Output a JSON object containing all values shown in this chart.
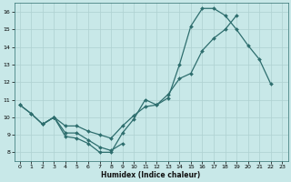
{
  "xlabel": "Humidex (Indice chaleur)",
  "bg_color": "#c8e8e8",
  "grid_color": "#aed0d0",
  "line_color": "#2e6e6e",
  "xlim": [
    -0.5,
    23.5
  ],
  "ylim": [
    7.5,
    16.5
  ],
  "xticks": [
    0,
    1,
    2,
    3,
    4,
    5,
    6,
    7,
    8,
    9,
    10,
    11,
    12,
    13,
    14,
    15,
    16,
    17,
    18,
    19,
    20,
    21,
    22,
    23
  ],
  "yticks": [
    8,
    9,
    10,
    11,
    12,
    13,
    14,
    15,
    16
  ],
  "line1_x": [
    0,
    1,
    2,
    3,
    4,
    5,
    6,
    7,
    8,
    9,
    10,
    11,
    12,
    13,
    14,
    15,
    16,
    17,
    18,
    19,
    20,
    21,
    22
  ],
  "line1_y": [
    10.7,
    10.2,
    9.6,
    10.0,
    8.9,
    8.8,
    8.5,
    8.0,
    8.0,
    9.1,
    9.9,
    11.0,
    10.7,
    11.1,
    13.0,
    15.2,
    16.2,
    16.2,
    15.8,
    15.0,
    14.1,
    13.3,
    11.9
  ],
  "line2_x": [
    0,
    1,
    2,
    3,
    4,
    5,
    6,
    7,
    8,
    9,
    10,
    11,
    12,
    13,
    14,
    15,
    16,
    17,
    18,
    19,
    20,
    21,
    22,
    23
  ],
  "line2_y": [
    10.7,
    10.2,
    9.6,
    10.0,
    9.5,
    9.5,
    9.2,
    9.0,
    8.8,
    9.5,
    10.1,
    10.6,
    10.7,
    11.3,
    12.2,
    12.5,
    13.8,
    14.5,
    15.0,
    15.8,
    null,
    null,
    null,
    null
  ],
  "line3_x": [
    2,
    3,
    4,
    5,
    6,
    7,
    8,
    9
  ],
  "line3_y": [
    9.6,
    10.0,
    9.1,
    9.1,
    8.7,
    8.3,
    8.1,
    8.5
  ],
  "markersize": 2.0,
  "linewidth": 0.9
}
